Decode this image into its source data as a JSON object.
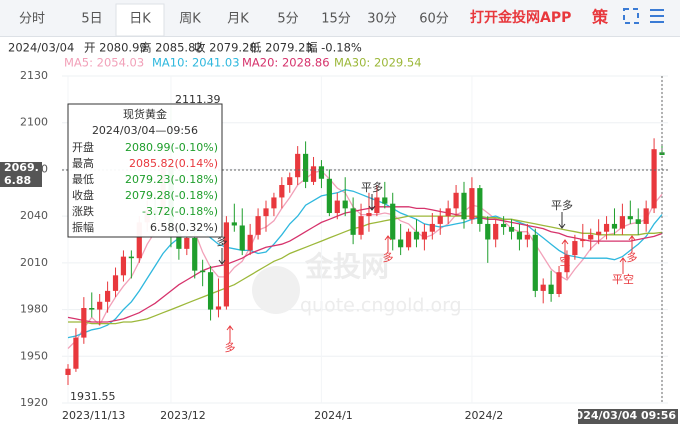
{
  "tabs": [
    "分时",
    "5日",
    "日K",
    "周K",
    "月K",
    "5分",
    "15分",
    "30分",
    "60分"
  ],
  "active_tab": 2,
  "brand": "打开金投网APP",
  "strategy": "策",
  "info": [
    "2024/03/04",
    "开 2080.99",
    "高 2085.82",
    "收 2079.28",
    "低 2079.23",
    "幅 -0.18%"
  ],
  "chart_data": {
    "type": "candlestick",
    "categories": [
      "2023/11/13",
      null,
      null,
      null,
      null,
      null,
      null,
      null,
      null,
      null,
      null,
      null,
      null,
      "2023/12",
      null,
      null,
      null,
      null,
      null,
      null,
      null,
      null,
      null,
      null,
      null,
      null,
      null,
      null,
      null,
      null,
      null,
      null,
      "2024/1",
      null,
      null,
      null,
      null,
      null,
      null,
      null,
      null,
      null,
      null,
      null,
      null,
      null,
      null,
      null,
      null,
      null,
      null,
      "2024/2",
      null,
      null,
      null,
      null,
      null,
      null,
      null,
      null,
      null,
      null,
      null,
      null,
      null,
      null,
      null,
      null,
      null,
      null,
      null,
      null,
      null,
      null,
      null,
      "2024/03/04 09:56"
    ],
    "candles": {
      "open": [
        1938,
        1942,
        1962,
        1981,
        1980,
        1985,
        1992,
        2002,
        2014,
        2013,
        2036,
        2044,
        2041,
        2072,
        2029,
        2019,
        2026,
        2005,
        2004,
        1980,
        1982,
        2036,
        2034,
        2018,
        2028,
        2040,
        2045,
        2052,
        2060,
        2065,
        2080,
        2062,
        2072,
        2064,
        2042,
        2050,
        2045,
        2028,
        2040,
        2042,
        2052,
        2048,
        2025,
        2020,
        2030,
        2025,
        2030,
        2035,
        2040,
        2045,
        2055,
        2038,
        2058,
        2035,
        2025,
        2035,
        2033,
        2030,
        2025,
        2028,
        1992,
        1996,
        1990,
        2004,
        2015,
        2024,
        2025,
        2028,
        2030,
        2035,
        2032,
        2040,
        2038,
        2035,
        2045,
        2080.99
      ],
      "high": [
        1945,
        1968,
        1988,
        1991,
        1990,
        1998,
        2007,
        2018,
        2018,
        2040,
        2050,
        2056,
        2070,
        2111.39,
        2035,
        2032,
        2030,
        2012,
        2008,
        2000,
        2040,
        2048,
        2045,
        2035,
        2045,
        2050,
        2055,
        2065,
        2068,
        2085,
        2088,
        2078,
        2076,
        2070,
        2055,
        2065,
        2052,
        2048,
        2055,
        2060,
        2062,
        2055,
        2035,
        2032,
        2038,
        2035,
        2042,
        2045,
        2050,
        2060,
        2062,
        2065,
        2060,
        2040,
        2038,
        2040,
        2038,
        2035,
        2035,
        2032,
        2000,
        2005,
        2008,
        2018,
        2028,
        2035,
        2032,
        2038,
        2040,
        2045,
        2048,
        2050,
        2045,
        2050,
        2090,
        2085.82
      ],
      "low": [
        1931.55,
        1940,
        1958,
        1975,
        1970,
        1978,
        1988,
        1998,
        2000,
        2010,
        2030,
        2035,
        2040,
        2020,
        2012,
        2015,
        2000,
        1995,
        1973,
        1975,
        1980,
        2030,
        2015,
        2015,
        2025,
        2030,
        2040,
        2045,
        2055,
        2060,
        2058,
        2060,
        2058,
        2040,
        2038,
        2040,
        2022,
        2025,
        2030,
        2040,
        2045,
        2018,
        2015,
        2018,
        2020,
        2018,
        2025,
        2028,
        2035,
        2040,
        2032,
        2035,
        2030,
        2010,
        2020,
        2028,
        2025,
        2018,
        2020,
        1988,
        1984,
        1985,
        1988,
        2000,
        2012,
        2020,
        2018,
        2022,
        2025,
        2028,
        2028,
        2035,
        2028,
        2030,
        2042,
        2079.23
      ],
      "close": [
        1942,
        1962,
        1981,
        1980,
        1985,
        1992,
        2002,
        2014,
        2013,
        2036,
        2044,
        2041,
        2071,
        2029,
        2019,
        2026,
        2005,
        2004,
        1980,
        1982,
        2036,
        2034,
        2018,
        2028,
        2040,
        2045,
        2052,
        2060,
        2065,
        2080,
        2062,
        2072,
        2064,
        2042,
        2050,
        2045,
        2028,
        2040,
        2042,
        2052,
        2048,
        2025,
        2020,
        2030,
        2025,
        2030,
        2035,
        2040,
        2045,
        2055,
        2038,
        2058,
        2035,
        2025,
        2035,
        2033,
        2030,
        2025,
        2028,
        1992,
        1996,
        1990,
        2004,
        2015,
        2024,
        2025,
        2028,
        2030,
        2035,
        2032,
        2040,
        2038,
        2035,
        2045,
        2083,
        2079.28
      ]
    },
    "up_color": "#e8383d",
    "down_color": "#1f9e2c",
    "series": [
      {
        "name": "MA5: 2054.03",
        "color": "#f2a1b9",
        "values": [
          1955,
          1960,
          1968,
          1975,
          1970,
          1980,
          1988,
          1995,
          2001,
          2011,
          2022,
          2030,
          2041,
          2044,
          2041,
          2036,
          2030,
          2017,
          2007,
          2001,
          2001,
          2007,
          2011,
          2020,
          2031,
          2033,
          2037,
          2045,
          2052,
          2060,
          2064,
          2068,
          2069,
          2064,
          2058,
          2055,
          2046,
          2041,
          2041,
          2041,
          2042,
          2041,
          2037,
          2035,
          2030,
          2026,
          2028,
          2032,
          2035,
          2041,
          2043,
          2047,
          2046,
          2042,
          2038,
          2037,
          2032,
          2030,
          2030,
          2022,
          2014,
          2006,
          2002,
          1999,
          2006,
          2012,
          2019,
          2024,
          2028,
          2029,
          2033,
          2035,
          2036,
          2038,
          2048,
          2054.03
        ]
      },
      {
        "name": "MA10: 2041.03",
        "color": "#2fb8de",
        "values": [
          1962,
          1963,
          1965,
          1967,
          1968,
          1970,
          1974,
          1980,
          1985,
          1992,
          2000,
          2008,
          2016,
          2022,
          2026,
          2028,
          2030,
          2030,
          2026,
          2022,
          2020,
          2019,
          2018,
          2018,
          2016,
          2017,
          2022,
          2028,
          2035,
          2040,
          2047,
          2050,
          2053,
          2054,
          2055,
          2057,
          2056,
          2054,
          2052,
          2050,
          2048,
          2045,
          2042,
          2040,
          2038,
          2035,
          2034,
          2033,
          2034,
          2035,
          2036,
          2038,
          2039,
          2039,
          2040,
          2038,
          2038,
          2036,
          2034,
          2030,
          2026,
          2022,
          2018,
          2015,
          2014,
          2013,
          2013,
          2013,
          2013,
          2012,
          2014,
          2018,
          2022,
          2027,
          2035,
          2041.03
        ]
      },
      {
        "name": "MA20: 2028.86",
        "color": "#d6336c",
        "values": [
          1975,
          1974,
          1973,
          1972,
          1972,
          1972,
          1973,
          1974,
          1976,
          1978,
          1981,
          1984,
          1988,
          1992,
          1996,
          1999,
          2002,
          2005,
          2007,
          2008,
          2009,
          2011,
          2013,
          2016,
          2018,
          2020,
          2021,
          2022,
          2024,
          2027,
          2030,
          2033,
          2036,
          2038,
          2040,
          2042,
          2043,
          2044,
          2045,
          2046,
          2046,
          2046,
          2046,
          2046,
          2045,
          2045,
          2044,
          2043,
          2042,
          2041,
          2040,
          2040,
          2039,
          2038,
          2038,
          2037,
          2036,
          2035,
          2034,
          2033,
          2032,
          2030,
          2029,
          2027,
          2026,
          2025,
          2024,
          2024,
          2024,
          2024,
          2024,
          2024,
          2025,
          2026,
          2027,
          2028.86
        ]
      },
      {
        "name": "MA30: 2029.54",
        "color": "#9cb83a",
        "values": [
          1972,
          1972,
          1972,
          1971,
          1971,
          1971,
          1971,
          1972,
          1972,
          1973,
          1974,
          1976,
          1978,
          1980,
          1982,
          1984,
          1986,
          1988,
          1990,
          1992,
          1994,
          1996,
          1999,
          2002,
          2005,
          2008,
          2011,
          2013,
          2016,
          2018,
          2020,
          2022,
          2024,
          2026,
          2028,
          2030,
          2032,
          2033,
          2035,
          2036,
          2037,
          2038,
          2039,
          2040,
          2040,
          2040,
          2040,
          2040,
          2040,
          2040,
          2040,
          2040,
          2040,
          2039,
          2039,
          2038,
          2038,
          2037,
          2036,
          2035,
          2034,
          2033,
          2032,
          2031,
          2030,
          2029,
          2029,
          2028,
          2028,
          2028,
          2028,
          2028,
          2028,
          2029,
          2029,
          2029.54
        ]
      }
    ],
    "ylim": [
      1920,
      2130
    ],
    "yticks": [
      1920,
      1950,
      1980,
      2010,
      2040,
      2070,
      2100,
      2130
    ],
    "grid": true,
    "crosshair": {
      "label": "2069.",
      "sublabel": "6.88"
    },
    "annotations": [
      "多",
      "多",
      "平多",
      "多",
      "平多",
      "空",
      "多",
      "平空"
    ],
    "tooltip": {
      "title": "现货黄金",
      "time": "2024/03/04—09:56",
      "rows": [
        {
          "label": "开盘",
          "value": "2080.99(-0.10%)",
          "color": "#1f9e2c"
        },
        {
          "label": "最高",
          "value": "2085.82(0.14%)",
          "color": "#e8383d"
        },
        {
          "label": "最低",
          "value": "2079.23(-0.18%)",
          "color": "#1f9e2c"
        },
        {
          "label": "收盘",
          "value": "2079.28(-0.18%)",
          "color": "#1f9e2c"
        },
        {
          "label": "涨跌",
          "value": "-3.72(-0.18%)",
          "color": "#1f9e2c"
        },
        {
          "label": "振幅",
          "value": "6.58(0.32%)",
          "color": "#333333"
        }
      ]
    },
    "watermark": [
      "金投网",
      "quote.cngold.org"
    ]
  }
}
